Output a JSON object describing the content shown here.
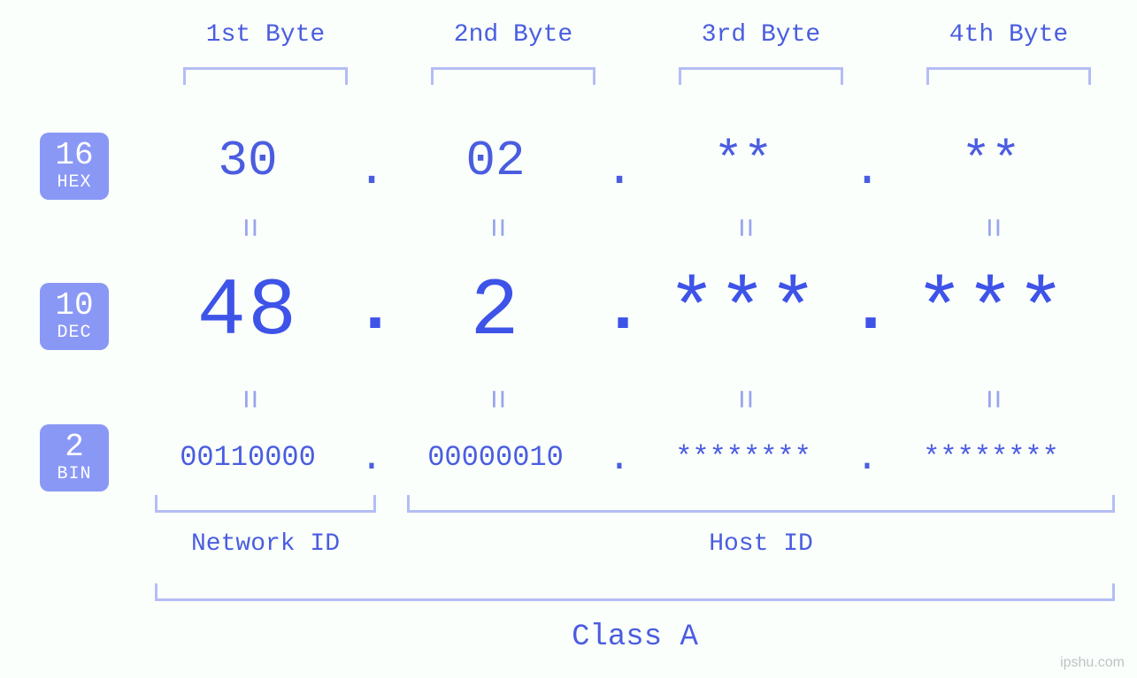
{
  "colors": {
    "background": "#fafffb",
    "primary_text": "#4a5de0",
    "dec_text": "#3e53e8",
    "bracket": "#b4bdf5",
    "badge_bg": "#8a98f5",
    "badge_text": "#ffffff",
    "equals": "#9aa5ec",
    "watermark": "#bfc2c5"
  },
  "typography": {
    "font_family": "Consolas, Monaco, Courier New, monospace",
    "byte_label_fontsize": 28,
    "hex_fontsize": 56,
    "dec_fontsize": 92,
    "bin_fontsize": 32,
    "badge_num_fontsize": 36,
    "badge_label_fontsize": 20,
    "section_label_fontsize": 28,
    "class_label_fontsize": 34,
    "equals_fontsize": 38
  },
  "byte_headers": [
    "1st Byte",
    "2nd Byte",
    "3rd Byte",
    "4th Byte"
  ],
  "bases": {
    "hex": {
      "num": "16",
      "label": "HEX"
    },
    "dec": {
      "num": "10",
      "label": "DEC"
    },
    "bin": {
      "num": "2",
      "label": "BIN"
    }
  },
  "hex": {
    "b1": "30",
    "b2": "02",
    "b3": "**",
    "b4": "**",
    "sep": "."
  },
  "dec": {
    "b1": "48",
    "b2": "2",
    "b3": "***",
    "b4": "***",
    "sep": "."
  },
  "bin": {
    "b1": "00110000",
    "b2": "00000010",
    "b3": "********",
    "b4": "********",
    "sep": "."
  },
  "equals_glyph": "=",
  "sections": {
    "network": "Network ID",
    "host": "Host ID",
    "class": "Class A"
  },
  "watermark": "ipshu.com"
}
